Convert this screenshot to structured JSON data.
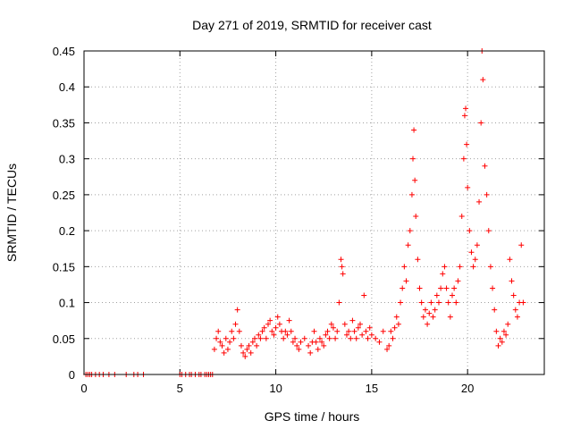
{
  "chart_data": {
    "type": "scatter",
    "title": "Day 271 of 2019, SRMTID for receiver cast",
    "xlabel": "GPS time / hours",
    "ylabel": "SRMTID / TECUs",
    "xlim": [
      0,
      24
    ],
    "ylim": [
      0,
      0.45
    ],
    "x_ticks": [
      0,
      5,
      10,
      15,
      20
    ],
    "y_ticks": [
      0,
      0.05,
      0.1,
      0.15,
      0.2,
      0.25,
      0.3,
      0.35,
      0.4,
      0.45
    ],
    "x_tick_labels": [
      "0",
      "5",
      "10",
      "15",
      "20"
    ],
    "y_tick_labels": [
      "0",
      "0.05",
      "0.1",
      "0.15",
      "0.2",
      "0.25",
      "0.3",
      "0.35",
      "0.4",
      "0.45"
    ],
    "grid": true,
    "marker": "+",
    "series_color": "#ff0000",
    "series": [
      {
        "name": "SRMTID",
        "points": [
          [
            0.1,
            0
          ],
          [
            0.2,
            0
          ],
          [
            0.3,
            0
          ],
          [
            0.4,
            0
          ],
          [
            0.6,
            0
          ],
          [
            0.8,
            0
          ],
          [
            1.0,
            0
          ],
          [
            1.3,
            0
          ],
          [
            1.6,
            0
          ],
          [
            2.2,
            0
          ],
          [
            2.6,
            0
          ],
          [
            2.8,
            0
          ],
          [
            3.1,
            0
          ],
          [
            5.0,
            0
          ],
          [
            5.1,
            0
          ],
          [
            5.3,
            0
          ],
          [
            5.5,
            0
          ],
          [
            5.6,
            0
          ],
          [
            5.8,
            0
          ],
          [
            6.0,
            0
          ],
          [
            6.1,
            0
          ],
          [
            6.3,
            0
          ],
          [
            6.4,
            0
          ],
          [
            6.5,
            0
          ],
          [
            6.6,
            0
          ],
          [
            6.7,
            0
          ],
          [
            6.8,
            0.035
          ],
          [
            6.9,
            0.05
          ],
          [
            7.0,
            0.06
          ],
          [
            7.1,
            0.045
          ],
          [
            7.2,
            0.04
          ],
          [
            7.3,
            0.03
          ],
          [
            7.4,
            0.05
          ],
          [
            7.5,
            0.035
          ],
          [
            7.6,
            0.045
          ],
          [
            7.7,
            0.06
          ],
          [
            7.8,
            0.05
          ],
          [
            7.9,
            0.07
          ],
          [
            8.0,
            0.09
          ],
          [
            8.1,
            0.06
          ],
          [
            8.2,
            0.04
          ],
          [
            8.3,
            0.03
          ],
          [
            8.4,
            0.025
          ],
          [
            8.5,
            0.035
          ],
          [
            8.6,
            0.04
          ],
          [
            8.7,
            0.03
          ],
          [
            8.8,
            0.045
          ],
          [
            8.9,
            0.05
          ],
          [
            9.0,
            0.04
          ],
          [
            9.1,
            0.055
          ],
          [
            9.2,
            0.05
          ],
          [
            9.3,
            0.06
          ],
          [
            9.4,
            0.065
          ],
          [
            9.5,
            0.05
          ],
          [
            9.6,
            0.07
          ],
          [
            9.7,
            0.075
          ],
          [
            9.8,
            0.06
          ],
          [
            9.9,
            0.055
          ],
          [
            10.0,
            0.065
          ],
          [
            10.1,
            0.08
          ],
          [
            10.2,
            0.07
          ],
          [
            10.3,
            0.06
          ],
          [
            10.4,
            0.05
          ],
          [
            10.5,
            0.06
          ],
          [
            10.6,
            0.055
          ],
          [
            10.7,
            0.075
          ],
          [
            10.8,
            0.06
          ],
          [
            10.9,
            0.045
          ],
          [
            11.0,
            0.05
          ],
          [
            11.1,
            0.04
          ],
          [
            11.2,
            0.035
          ],
          [
            11.3,
            0.045
          ],
          [
            11.5,
            0.05
          ],
          [
            11.7,
            0.04
          ],
          [
            11.8,
            0.03
          ],
          [
            11.9,
            0.045
          ],
          [
            12.0,
            0.06
          ],
          [
            12.1,
            0.045
          ],
          [
            12.2,
            0.035
          ],
          [
            12.3,
            0.05
          ],
          [
            12.4,
            0.045
          ],
          [
            12.5,
            0.04
          ],
          [
            12.6,
            0.055
          ],
          [
            12.7,
            0.06
          ],
          [
            12.8,
            0.05
          ],
          [
            12.9,
            0.07
          ],
          [
            13.0,
            0.065
          ],
          [
            13.1,
            0.05
          ],
          [
            13.2,
            0.06
          ],
          [
            13.3,
            0.1
          ],
          [
            13.4,
            0.16
          ],
          [
            13.45,
            0.15
          ],
          [
            13.5,
            0.14
          ],
          [
            13.6,
            0.07
          ],
          [
            13.7,
            0.055
          ],
          [
            13.8,
            0.06
          ],
          [
            13.9,
            0.05
          ],
          [
            14.0,
            0.075
          ],
          [
            14.1,
            0.06
          ],
          [
            14.2,
            0.05
          ],
          [
            14.3,
            0.065
          ],
          [
            14.4,
            0.07
          ],
          [
            14.5,
            0.055
          ],
          [
            14.6,
            0.11
          ],
          [
            14.7,
            0.06
          ],
          [
            14.8,
            0.05
          ],
          [
            14.9,
            0.065
          ],
          [
            15.0,
            0.055
          ],
          [
            15.2,
            0.05
          ],
          [
            15.4,
            0.045
          ],
          [
            15.6,
            0.06
          ],
          [
            15.8,
            0.035
          ],
          [
            15.9,
            0.04
          ],
          [
            16.0,
            0.06
          ],
          [
            16.1,
            0.05
          ],
          [
            16.2,
            0.065
          ],
          [
            16.3,
            0.08
          ],
          [
            16.4,
            0.07
          ],
          [
            16.5,
            0.1
          ],
          [
            16.6,
            0.12
          ],
          [
            16.7,
            0.15
          ],
          [
            16.8,
            0.13
          ],
          [
            16.9,
            0.18
          ],
          [
            17.0,
            0.2
          ],
          [
            17.1,
            0.25
          ],
          [
            17.15,
            0.3
          ],
          [
            17.2,
            0.34
          ],
          [
            17.25,
            0.27
          ],
          [
            17.3,
            0.22
          ],
          [
            17.4,
            0.16
          ],
          [
            17.5,
            0.12
          ],
          [
            17.6,
            0.1
          ],
          [
            17.7,
            0.08
          ],
          [
            17.8,
            0.09
          ],
          [
            17.9,
            0.07
          ],
          [
            18.0,
            0.085
          ],
          [
            18.1,
            0.1
          ],
          [
            18.2,
            0.08
          ],
          [
            18.3,
            0.09
          ],
          [
            18.4,
            0.11
          ],
          [
            18.5,
            0.1
          ],
          [
            18.6,
            0.12
          ],
          [
            18.7,
            0.14
          ],
          [
            18.8,
            0.15
          ],
          [
            18.9,
            0.12
          ],
          [
            19.0,
            0.1
          ],
          [
            19.1,
            0.08
          ],
          [
            19.2,
            0.11
          ],
          [
            19.3,
            0.12
          ],
          [
            19.4,
            0.1
          ],
          [
            19.5,
            0.13
          ],
          [
            19.6,
            0.15
          ],
          [
            19.7,
            0.22
          ],
          [
            19.8,
            0.3
          ],
          [
            19.85,
            0.36
          ],
          [
            19.9,
            0.37
          ],
          [
            19.95,
            0.32
          ],
          [
            20.0,
            0.26
          ],
          [
            20.1,
            0.2
          ],
          [
            20.2,
            0.17
          ],
          [
            20.3,
            0.15
          ],
          [
            20.4,
            0.16
          ],
          [
            20.5,
            0.18
          ],
          [
            20.6,
            0.24
          ],
          [
            20.7,
            0.35
          ],
          [
            20.75,
            0.45
          ],
          [
            20.8,
            0.41
          ],
          [
            20.9,
            0.29
          ],
          [
            21.0,
            0.25
          ],
          [
            21.1,
            0.2
          ],
          [
            21.2,
            0.15
          ],
          [
            21.3,
            0.12
          ],
          [
            21.4,
            0.09
          ],
          [
            21.5,
            0.06
          ],
          [
            21.6,
            0.04
          ],
          [
            21.7,
            0.05
          ],
          [
            21.8,
            0.045
          ],
          [
            21.9,
            0.06
          ],
          [
            22.0,
            0.055
          ],
          [
            22.1,
            0.07
          ],
          [
            22.2,
            0.16
          ],
          [
            22.3,
            0.13
          ],
          [
            22.4,
            0.11
          ],
          [
            22.5,
            0.09
          ],
          [
            22.6,
            0.08
          ],
          [
            22.7,
            0.1
          ],
          [
            22.8,
            0.18
          ],
          [
            22.9,
            0.1
          ]
        ]
      }
    ]
  }
}
